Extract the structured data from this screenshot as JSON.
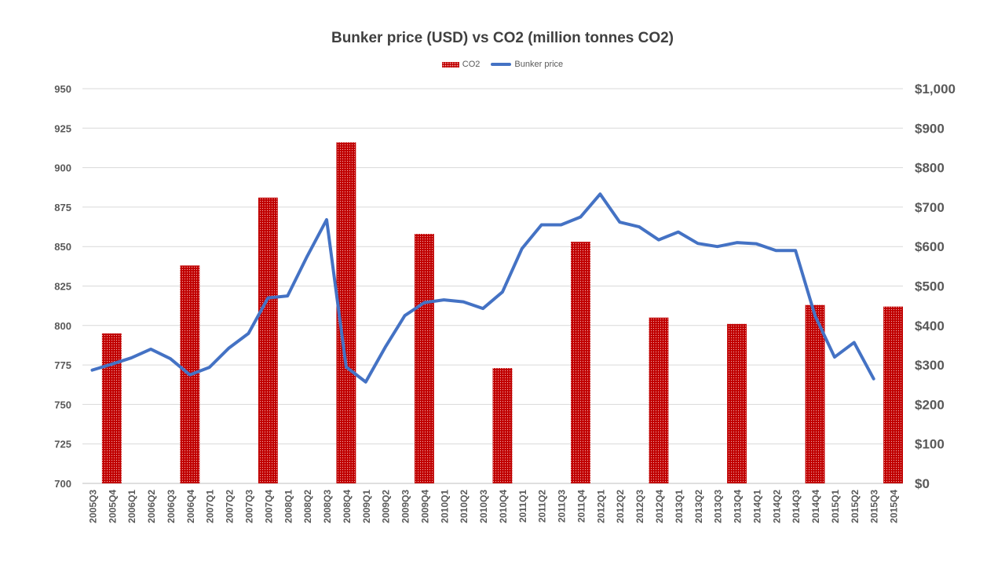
{
  "colors": {
    "bar": "#c00000",
    "line": "#4472c4",
    "grid": "#d9d9d9",
    "text": "#595959"
  },
  "chart_data": {
    "type": "bar",
    "title": "Bunker price (USD) vs CO2 (million tonnes CO2)",
    "legend": {
      "position": "top",
      "entries": [
        "CO2",
        "Bunker price"
      ]
    },
    "categories": [
      "2005Q3",
      "2005Q4",
      "2006Q1",
      "2006Q2",
      "2006Q3",
      "2006Q4",
      "2007Q1",
      "2007Q2",
      "2007Q3",
      "2007Q4",
      "2008Q1",
      "2008Q2",
      "2008Q3",
      "2008Q4",
      "2009Q1",
      "2009Q2",
      "2009Q3",
      "2009Q4",
      "2010Q1",
      "2010Q2",
      "2010Q3",
      "2010Q4",
      "2011Q1",
      "2011Q2",
      "2011Q3",
      "2011Q4",
      "2012Q1",
      "2012Q2",
      "2012Q3",
      "2012Q4",
      "2013Q1",
      "2013Q2",
      "2013Q3",
      "2013Q4",
      "2014Q1",
      "2014Q2",
      "2014Q3",
      "2014Q4",
      "2015Q1",
      "2015Q2",
      "2015Q3",
      "2015Q4"
    ],
    "left_axis": {
      "ylim": [
        700,
        950
      ],
      "ticks": [
        "700",
        "725",
        "750",
        "775",
        "800",
        "825",
        "850",
        "875",
        "900",
        "925",
        "950"
      ]
    },
    "right_axis": {
      "ylim": [
        0,
        1000
      ],
      "ticks": [
        "$0",
        "$100",
        "$200",
        "$300",
        "$400",
        "$500",
        "$600",
        "$700",
        "$800",
        "$900",
        "$1,000"
      ]
    },
    "grid": true,
    "series": [
      {
        "name": "CO2",
        "type": "bar",
        "axis": "left",
        "values": [
          null,
          795,
          null,
          null,
          null,
          838,
          null,
          null,
          null,
          881,
          null,
          null,
          null,
          916,
          null,
          null,
          null,
          858,
          null,
          null,
          null,
          773,
          null,
          null,
          null,
          853,
          null,
          null,
          null,
          805,
          null,
          null,
          null,
          801,
          null,
          null,
          null,
          813,
          null,
          null,
          null,
          812
        ]
      },
      {
        "name": "Bunker price",
        "type": "line",
        "axis": "right",
        "values": [
          287,
          302,
          318,
          340,
          316,
          275,
          294,
          343,
          380,
          470,
          475,
          575,
          668,
          295,
          257,
          345,
          425,
          458,
          465,
          460,
          443,
          485,
          595,
          655,
          655,
          675,
          733,
          662,
          650,
          617,
          637,
          608,
          600,
          610,
          607,
          590,
          590,
          425,
          320,
          357,
          265,
          null
        ]
      }
    ]
  }
}
